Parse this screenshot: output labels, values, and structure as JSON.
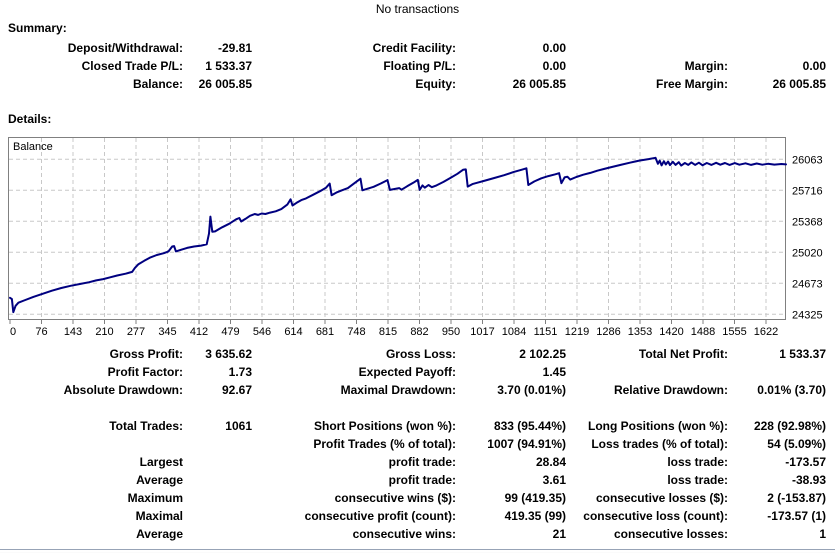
{
  "header": {
    "title": "No transactions"
  },
  "summary": {
    "heading": "Summary:",
    "rows": [
      [
        "Deposit/Withdrawal:",
        "-29.81",
        "Credit Facility:",
        "0.00",
        "",
        ""
      ],
      [
        "Closed Trade P/L:",
        "1 533.37",
        "Floating P/L:",
        "0.00",
        "Margin:",
        "0.00"
      ],
      [
        "Balance:",
        "26 005.85",
        "Equity:",
        "26 005.85",
        "Free Margin:",
        "26 005.85"
      ]
    ]
  },
  "details": {
    "heading": "Details:",
    "top_rows": [
      [
        "Gross Profit:",
        "3 635.62",
        "Gross Loss:",
        "2 102.25",
        "Total Net Profit:",
        "1 533.37"
      ],
      [
        "Profit Factor:",
        "1.73",
        "Expected Payoff:",
        "1.45",
        "",
        ""
      ],
      [
        "Absolute Drawdown:",
        "92.67",
        "Maximal Drawdown:",
        "3.70 (0.01%)",
        "Relative Drawdown:",
        "0.01% (3.70)"
      ]
    ],
    "main_rows": [
      [
        "Total Trades:",
        "1061",
        "Short Positions (won %):",
        "833 (95.44%)",
        "Long Positions (won %):",
        "228 (92.98%)"
      ],
      [
        "",
        "",
        "Profit Trades (% of total):",
        "1007 (94.91%)",
        "Loss trades (% of total):",
        "54 (5.09%)"
      ],
      [
        "Largest",
        "",
        "profit trade:",
        "28.84",
        "loss trade:",
        "-173.57"
      ],
      [
        "Average",
        "",
        "profit trade:",
        "3.61",
        "loss trade:",
        "-38.93"
      ],
      [
        "Maximum",
        "",
        "consecutive wins ($):",
        "99 (419.35)",
        "consecutive losses ($):",
        "2 (-153.87)"
      ],
      [
        "Maximal",
        "",
        "consecutive profit (count):",
        "419.35 (99)",
        "consecutive loss (count):",
        "-173.57 (1)"
      ],
      [
        "Average",
        "",
        "consecutive wins:",
        "21",
        "consecutive losses:",
        "1"
      ]
    ]
  },
  "chart_data": {
    "type": "line",
    "title": "Balance",
    "xlabel": "",
    "ylabel": "",
    "x_ticks": [
      "0",
      "76",
      "143",
      "210",
      "277",
      "345",
      "412",
      "479",
      "546",
      "614",
      "681",
      "748",
      "815",
      "882",
      "950",
      "1017",
      "1084",
      "1151",
      "1219",
      "1286",
      "1353",
      "1420",
      "1488",
      "1555",
      "1622"
    ],
    "y_ticks": [
      26063,
      25716,
      25368,
      25020,
      24673,
      24325
    ],
    "xlim": [
      0,
      1668
    ],
    "ylim": [
      24260,
      26130
    ],
    "grid": true,
    "legend_position": "top-left",
    "colors": {
      "line": "#000080",
      "grid": "#c8c8c8",
      "border": "#808080",
      "text": "#000000"
    },
    "series": [
      {
        "name": "Balance",
        "points": [
          [
            0,
            24510
          ],
          [
            4,
            24495
          ],
          [
            7,
            24350
          ],
          [
            12,
            24420
          ],
          [
            18,
            24455
          ],
          [
            30,
            24480
          ],
          [
            50,
            24520
          ],
          [
            70,
            24555
          ],
          [
            90,
            24590
          ],
          [
            110,
            24620
          ],
          [
            130,
            24645
          ],
          [
            150,
            24665
          ],
          [
            170,
            24685
          ],
          [
            185,
            24705
          ],
          [
            200,
            24720
          ],
          [
            215,
            24740
          ],
          [
            230,
            24760
          ],
          [
            248,
            24780
          ],
          [
            262,
            24800
          ],
          [
            268,
            24845
          ],
          [
            275,
            24885
          ],
          [
            288,
            24925
          ],
          [
            300,
            24960
          ],
          [
            315,
            24990
          ],
          [
            330,
            25010
          ],
          [
            340,
            25030
          ],
          [
            348,
            25085
          ],
          [
            352,
            25090
          ],
          [
            356,
            25030
          ],
          [
            365,
            25045
          ],
          [
            380,
            25070
          ],
          [
            395,
            25085
          ],
          [
            410,
            25095
          ],
          [
            422,
            25110
          ],
          [
            427,
            25230
          ],
          [
            430,
            25420
          ],
          [
            434,
            25250
          ],
          [
            440,
            25255
          ],
          [
            455,
            25300
          ],
          [
            470,
            25340
          ],
          [
            485,
            25390
          ],
          [
            492,
            25405
          ],
          [
            496,
            25365
          ],
          [
            505,
            25395
          ],
          [
            515,
            25430
          ],
          [
            525,
            25450
          ],
          [
            532,
            25440
          ],
          [
            540,
            25455
          ],
          [
            548,
            25450
          ],
          [
            558,
            25465
          ],
          [
            570,
            25480
          ],
          [
            582,
            25505
          ],
          [
            595,
            25555
          ],
          [
            602,
            25615
          ],
          [
            606,
            25545
          ],
          [
            615,
            25575
          ],
          [
            625,
            25605
          ],
          [
            635,
            25625
          ],
          [
            650,
            25665
          ],
          [
            665,
            25705
          ],
          [
            678,
            25745
          ],
          [
            686,
            25790
          ],
          [
            690,
            25660
          ],
          [
            700,
            25690
          ],
          [
            712,
            25715
          ],
          [
            725,
            25740
          ],
          [
            740,
            25800
          ],
          [
            752,
            25845
          ],
          [
            756,
            25715
          ],
          [
            768,
            25735
          ],
          [
            780,
            25755
          ],
          [
            795,
            25790
          ],
          [
            810,
            25830
          ],
          [
            815,
            25720
          ],
          [
            825,
            25730
          ],
          [
            835,
            25740
          ],
          [
            840,
            25722
          ],
          [
            852,
            25760
          ],
          [
            865,
            25800
          ],
          [
            875,
            25832
          ],
          [
            879,
            25720
          ],
          [
            885,
            25770
          ],
          [
            890,
            25745
          ],
          [
            898,
            25775
          ],
          [
            905,
            25750
          ],
          [
            915,
            25770
          ],
          [
            930,
            25810
          ],
          [
            945,
            25855
          ],
          [
            960,
            25900
          ],
          [
            972,
            25945
          ],
          [
            978,
            25950
          ],
          [
            982,
            25757
          ],
          [
            992,
            25785
          ],
          [
            1002,
            25800
          ],
          [
            1020,
            25825
          ],
          [
            1040,
            25855
          ],
          [
            1060,
            25885
          ],
          [
            1080,
            25920
          ],
          [
            1100,
            25950
          ],
          [
            1108,
            25962
          ],
          [
            1112,
            25775
          ],
          [
            1125,
            25815
          ],
          [
            1140,
            25850
          ],
          [
            1155,
            25875
          ],
          [
            1170,
            25895
          ],
          [
            1178,
            25907
          ],
          [
            1183,
            25795
          ],
          [
            1190,
            25860
          ],
          [
            1196,
            25868
          ],
          [
            1202,
            25835
          ],
          [
            1215,
            25865
          ],
          [
            1230,
            25890
          ],
          [
            1245,
            25910
          ],
          [
            1260,
            25935
          ],
          [
            1275,
            25955
          ],
          [
            1290,
            25975
          ],
          [
            1310,
            26000
          ],
          [
            1330,
            26025
          ],
          [
            1350,
            26048
          ],
          [
            1370,
            26065
          ],
          [
            1385,
            26080
          ],
          [
            1390,
            26012
          ],
          [
            1394,
            26048
          ],
          [
            1398,
            25995
          ],
          [
            1403,
            26042
          ],
          [
            1407,
            26005
          ],
          [
            1412,
            26038
          ],
          [
            1416,
            25998
          ],
          [
            1422,
            26035
          ],
          [
            1428,
            26000
          ],
          [
            1435,
            26030
          ],
          [
            1440,
            25992
          ],
          [
            1448,
            26022
          ],
          [
            1455,
            26000
          ],
          [
            1462,
            26028
          ],
          [
            1470,
            26000
          ],
          [
            1478,
            26025
          ],
          [
            1486,
            25996
          ],
          [
            1495,
            26022
          ],
          [
            1505,
            26000
          ],
          [
            1515,
            26024
          ],
          [
            1524,
            26002
          ],
          [
            1534,
            26022
          ],
          [
            1544,
            26000
          ],
          [
            1555,
            26020
          ],
          [
            1565,
            26002
          ],
          [
            1578,
            26018
          ],
          [
            1590,
            26000
          ],
          [
            1602,
            26016
          ],
          [
            1614,
            26002
          ],
          [
            1626,
            26012
          ],
          [
            1640,
            26004
          ],
          [
            1655,
            26010
          ],
          [
            1665,
            26006
          ]
        ]
      }
    ]
  }
}
